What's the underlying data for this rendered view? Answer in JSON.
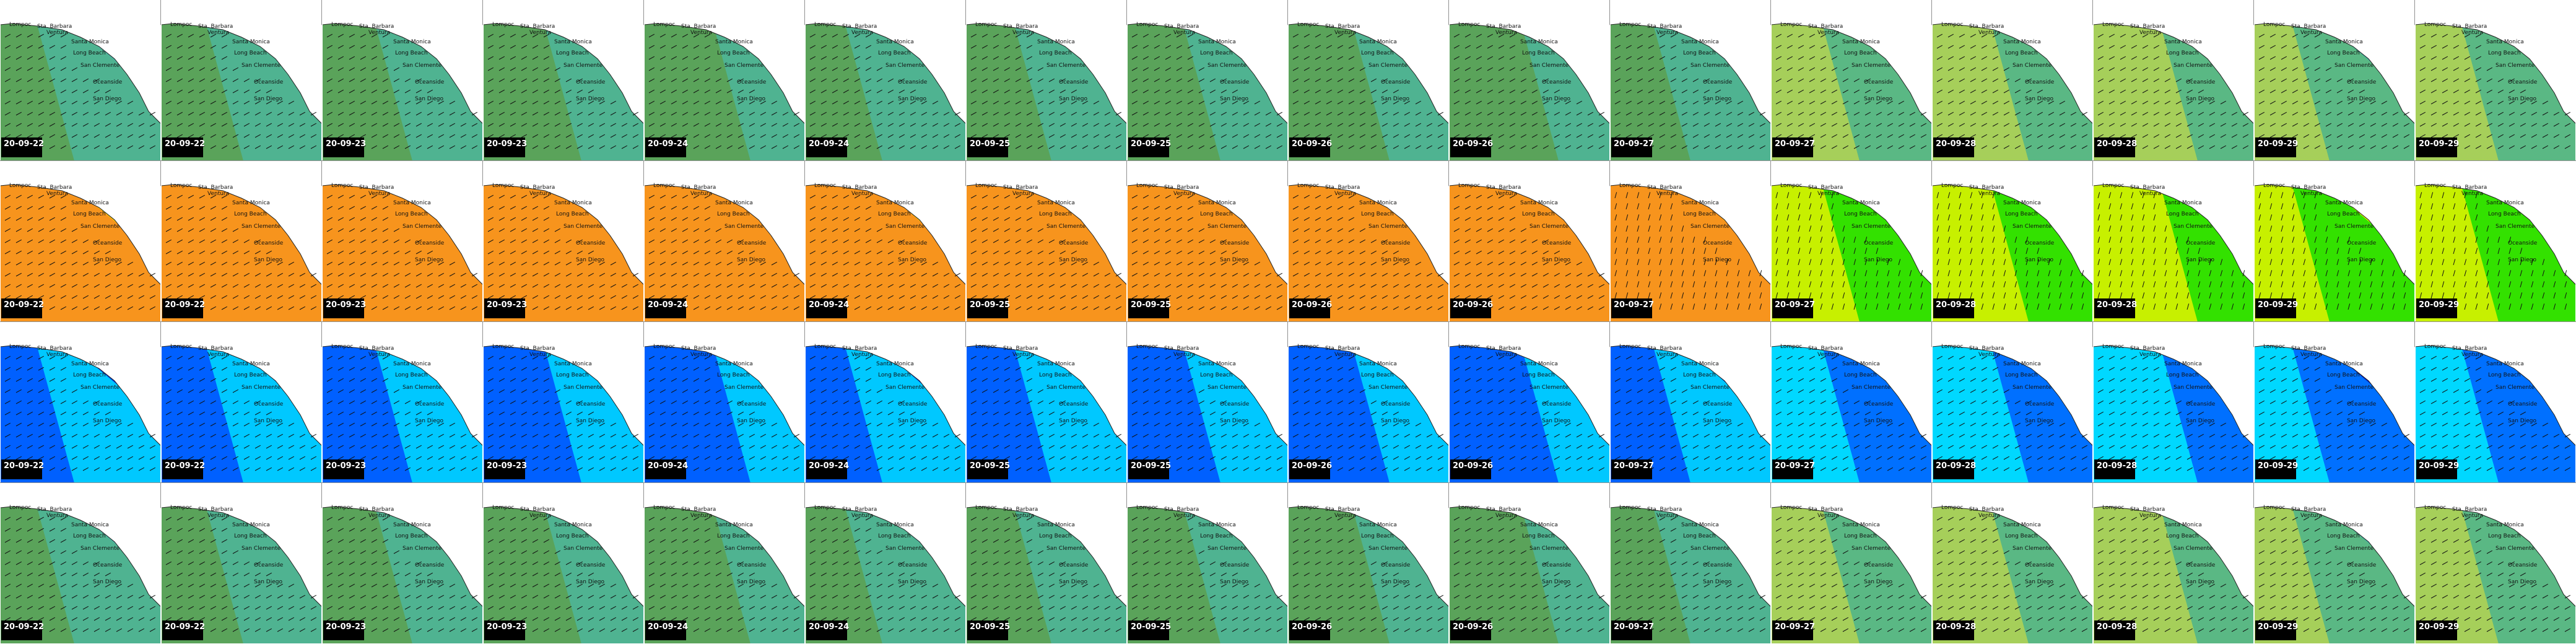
{
  "dates": [
    "20-09-22",
    "20-09-22",
    "20-09-23",
    "20-09-23",
    "20-09-24",
    "20-09-24",
    "20-09-25",
    "20-09-25",
    "20-09-26",
    "20-09-26",
    "20-09-27",
    "20-09-27",
    "20-09-28",
    "20-09-28",
    "20-09-29",
    "20-09-29"
  ],
  "places": [
    "Lompoc",
    "Sta. Barbara",
    "Ventura",
    "Santa Monica",
    "Long Beach",
    "San Clemente",
    "Oceanside",
    "San Diego"
  ]
}
